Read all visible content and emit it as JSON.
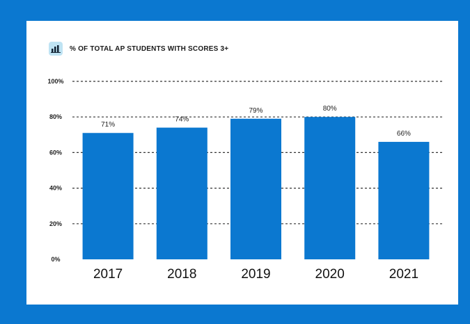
{
  "chart_data": {
    "type": "bar",
    "title": "% OF TOTAL AP STUDENTS WITH SCORES 3+",
    "categories": [
      "2017",
      "2018",
      "2019",
      "2020",
      "2021"
    ],
    "values": [
      71,
      74,
      79,
      80,
      66
    ],
    "data_labels": [
      "71%",
      "74%",
      "79%",
      "80%",
      "66%"
    ],
    "ylim": [
      0,
      100
    ],
    "yticks": [
      0,
      20,
      40,
      60,
      80,
      100
    ],
    "ytick_labels": [
      "0%",
      "20%",
      "40%",
      "60%",
      "80%",
      "100%"
    ],
    "grid": "dashed-horizontal",
    "legend": "none",
    "bar_color": "#0b78d0",
    "frame_color": "#0b78d0"
  },
  "header": {
    "icon": "bar-chart-icon"
  }
}
